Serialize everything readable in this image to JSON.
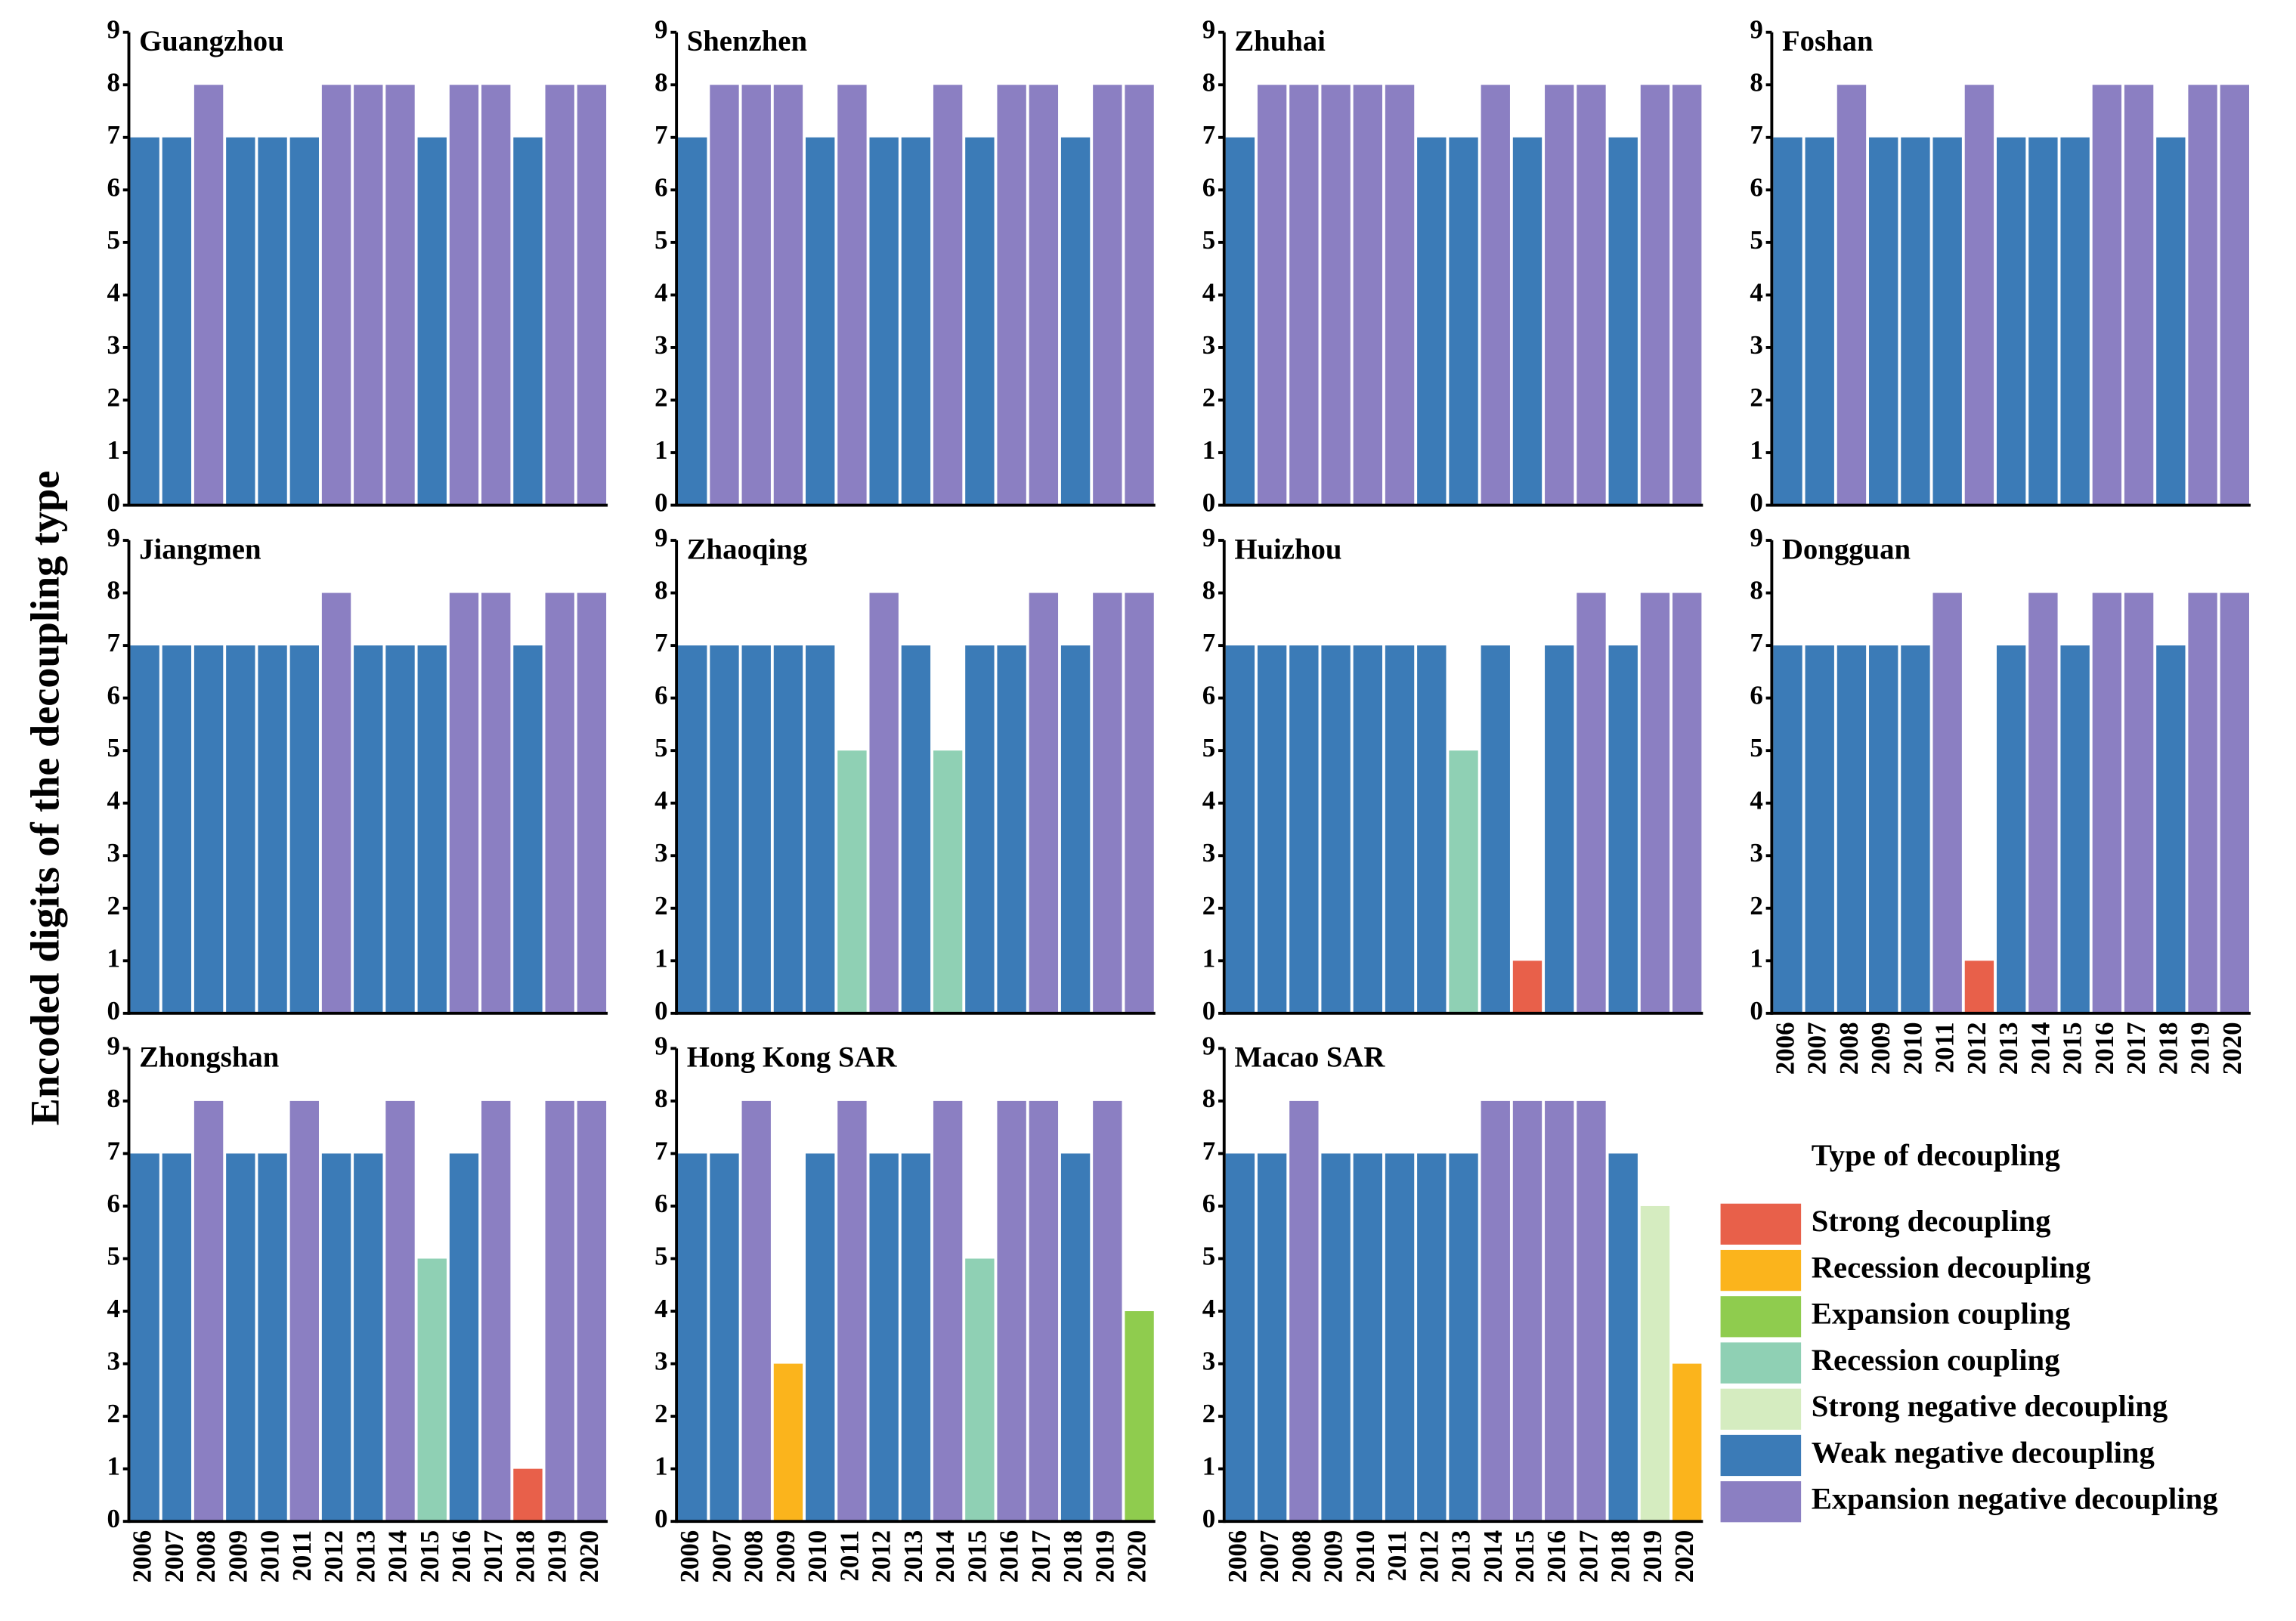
{
  "ylabel": "Encoded digits of the decoupling type",
  "legend": {
    "title": "Type of decoupling",
    "items": [
      {
        "name": "Strong decoupling",
        "color": "#e8604a"
      },
      {
        "name": "Recession decoupling",
        "color": "#fbb41c"
      },
      {
        "name": "Expansion coupling",
        "color": "#8fcc4e"
      },
      {
        "name": "Recession coupling",
        "color": "#8fd0b4"
      },
      {
        "name": "Strong negative decoupling",
        "color": "#d5ecc0"
      },
      {
        "name": "Weak negative decoupling",
        "color": "#3b7bb7"
      },
      {
        "name": "Expansion negative decoupling",
        "color": "#8b7fc2"
      }
    ]
  },
  "chart_data": [
    {
      "type": "bar",
      "title": "Guangzhou",
      "ylim": [
        0,
        9
      ],
      "yticks": [
        0,
        1,
        2,
        3,
        4,
        5,
        6,
        7,
        8,
        9
      ],
      "values": [
        7,
        7,
        8,
        7,
        7,
        7,
        8,
        8,
        8,
        7,
        8,
        8,
        7,
        8,
        8
      ],
      "colors": [
        "#3b7bb7",
        "#3b7bb7",
        "#8b7fc2",
        "#3b7bb7",
        "#3b7bb7",
        "#3b7bb7",
        "#8b7fc2",
        "#8b7fc2",
        "#8b7fc2",
        "#3b7bb7",
        "#8b7fc2",
        "#8b7fc2",
        "#3b7bb7",
        "#8b7fc2",
        "#8b7fc2"
      ]
    },
    {
      "type": "bar",
      "title": "Shenzhen",
      "ylim": [
        0,
        9
      ],
      "yticks": [
        0,
        1,
        2,
        3,
        4,
        5,
        6,
        7,
        8,
        9
      ],
      "values": [
        7,
        8,
        8,
        8,
        7,
        8,
        7,
        7,
        8,
        7,
        8,
        8,
        7,
        8,
        8
      ],
      "colors": [
        "#3b7bb7",
        "#8b7fc2",
        "#8b7fc2",
        "#8b7fc2",
        "#3b7bb7",
        "#8b7fc2",
        "#3b7bb7",
        "#3b7bb7",
        "#8b7fc2",
        "#3b7bb7",
        "#8b7fc2",
        "#8b7fc2",
        "#3b7bb7",
        "#8b7fc2",
        "#8b7fc2"
      ]
    },
    {
      "type": "bar",
      "title": "Zhuhai",
      "ylim": [
        0,
        9
      ],
      "yticks": [
        0,
        1,
        2,
        3,
        4,
        5,
        6,
        7,
        8,
        9
      ],
      "values": [
        7,
        8,
        8,
        8,
        8,
        8,
        7,
        7,
        8,
        7,
        8,
        8,
        7,
        8,
        8
      ],
      "colors": [
        "#3b7bb7",
        "#8b7fc2",
        "#8b7fc2",
        "#8b7fc2",
        "#8b7fc2",
        "#8b7fc2",
        "#3b7bb7",
        "#3b7bb7",
        "#8b7fc2",
        "#3b7bb7",
        "#8b7fc2",
        "#8b7fc2",
        "#3b7bb7",
        "#8b7fc2",
        "#8b7fc2"
      ]
    },
    {
      "type": "bar",
      "title": "Foshan",
      "ylim": [
        0,
        9
      ],
      "yticks": [
        0,
        1,
        2,
        3,
        4,
        5,
        6,
        7,
        8,
        9
      ],
      "values": [
        7,
        7,
        8,
        7,
        7,
        7,
        8,
        7,
        7,
        7,
        8,
        8,
        7,
        8,
        8
      ],
      "colors": [
        "#3b7bb7",
        "#3b7bb7",
        "#8b7fc2",
        "#3b7bb7",
        "#3b7bb7",
        "#3b7bb7",
        "#8b7fc2",
        "#3b7bb7",
        "#3b7bb7",
        "#3b7bb7",
        "#8b7fc2",
        "#8b7fc2",
        "#3b7bb7",
        "#8b7fc2",
        "#8b7fc2"
      ]
    },
    {
      "type": "bar",
      "title": "Jiangmen",
      "ylim": [
        0,
        9
      ],
      "yticks": [
        0,
        1,
        2,
        3,
        4,
        5,
        6,
        7,
        8,
        9
      ],
      "values": [
        7,
        7,
        7,
        7,
        7,
        7,
        8,
        7,
        7,
        7,
        8,
        8,
        7,
        8,
        8
      ],
      "colors": [
        "#3b7bb7",
        "#3b7bb7",
        "#3b7bb7",
        "#3b7bb7",
        "#3b7bb7",
        "#3b7bb7",
        "#8b7fc2",
        "#3b7bb7",
        "#3b7bb7",
        "#3b7bb7",
        "#8b7fc2",
        "#8b7fc2",
        "#3b7bb7",
        "#8b7fc2",
        "#8b7fc2"
      ]
    },
    {
      "type": "bar",
      "title": "Zhaoqing",
      "ylim": [
        0,
        9
      ],
      "yticks": [
        0,
        1,
        2,
        3,
        4,
        5,
        6,
        7,
        8,
        9
      ],
      "values": [
        7,
        7,
        7,
        7,
        7,
        5,
        8,
        7,
        5,
        7,
        7,
        8,
        7,
        8,
        8
      ],
      "colors": [
        "#3b7bb7",
        "#3b7bb7",
        "#3b7bb7",
        "#3b7bb7",
        "#3b7bb7",
        "#8fd0b4",
        "#8b7fc2",
        "#3b7bb7",
        "#8fd0b4",
        "#3b7bb7",
        "#3b7bb7",
        "#8b7fc2",
        "#3b7bb7",
        "#8b7fc2",
        "#8b7fc2"
      ]
    },
    {
      "type": "bar",
      "title": "Huizhou",
      "ylim": [
        0,
        9
      ],
      "yticks": [
        0,
        1,
        2,
        3,
        4,
        5,
        6,
        7,
        8,
        9
      ],
      "values": [
        7,
        7,
        7,
        7,
        7,
        7,
        7,
        5,
        7,
        1,
        7,
        8,
        7,
        8,
        8
      ],
      "colors": [
        "#3b7bb7",
        "#3b7bb7",
        "#3b7bb7",
        "#3b7bb7",
        "#3b7bb7",
        "#3b7bb7",
        "#3b7bb7",
        "#8fd0b4",
        "#3b7bb7",
        "#e8604a",
        "#3b7bb7",
        "#8b7fc2",
        "#3b7bb7",
        "#8b7fc2",
        "#8b7fc2"
      ]
    },
    {
      "type": "bar",
      "title": "Dongguan",
      "ylim": [
        0,
        9
      ],
      "yticks": [
        0,
        1,
        2,
        3,
        4,
        5,
        6,
        7,
        8,
        9
      ],
      "categories": [
        "2006",
        "2007",
        "2008",
        "2009",
        "2010",
        "2011",
        "2012",
        "2013",
        "2014",
        "2015",
        "2016",
        "2017",
        "2018",
        "2019",
        "2020"
      ],
      "values": [
        7,
        7,
        7,
        7,
        7,
        8,
        1,
        7,
        8,
        7,
        8,
        8,
        7,
        8,
        8
      ],
      "colors": [
        "#3b7bb7",
        "#3b7bb7",
        "#3b7bb7",
        "#3b7bb7",
        "#3b7bb7",
        "#8b7fc2",
        "#e8604a",
        "#3b7bb7",
        "#8b7fc2",
        "#3b7bb7",
        "#8b7fc2",
        "#8b7fc2",
        "#3b7bb7",
        "#8b7fc2",
        "#8b7fc2"
      ]
    },
    {
      "type": "bar",
      "title": "Zhongshan",
      "ylim": [
        0,
        9
      ],
      "yticks": [
        0,
        1,
        2,
        3,
        4,
        5,
        6,
        7,
        8,
        9
      ],
      "categories": [
        "2006",
        "2007",
        "2008",
        "2009",
        "2010",
        "2011",
        "2012",
        "2013",
        "2014",
        "2015",
        "2016",
        "2017",
        "2018",
        "2019",
        "2020"
      ],
      "values": [
        7,
        7,
        8,
        7,
        7,
        8,
        7,
        7,
        8,
        5,
        7,
        8,
        1,
        8,
        8
      ],
      "colors": [
        "#3b7bb7",
        "#3b7bb7",
        "#8b7fc2",
        "#3b7bb7",
        "#3b7bb7",
        "#8b7fc2",
        "#3b7bb7",
        "#3b7bb7",
        "#8b7fc2",
        "#8fd0b4",
        "#3b7bb7",
        "#8b7fc2",
        "#e8604a",
        "#8b7fc2",
        "#8b7fc2"
      ]
    },
    {
      "type": "bar",
      "title": "Hong Kong SAR",
      "ylim": [
        0,
        9
      ],
      "yticks": [
        0,
        1,
        2,
        3,
        4,
        5,
        6,
        7,
        8,
        9
      ],
      "categories": [
        "2006",
        "2007",
        "2008",
        "2009",
        "2010",
        "2011",
        "2012",
        "2013",
        "2014",
        "2015",
        "2016",
        "2017",
        "2018",
        "2019",
        "2020"
      ],
      "values": [
        7,
        7,
        8,
        3,
        7,
        8,
        7,
        7,
        8,
        5,
        8,
        8,
        7,
        8,
        4
      ],
      "colors": [
        "#3b7bb7",
        "#3b7bb7",
        "#8b7fc2",
        "#fbb41c",
        "#3b7bb7",
        "#8b7fc2",
        "#3b7bb7",
        "#3b7bb7",
        "#8b7fc2",
        "#8fd0b4",
        "#8b7fc2",
        "#8b7fc2",
        "#3b7bb7",
        "#8b7fc2",
        "#8fcc4e"
      ]
    },
    {
      "type": "bar",
      "title": "Macao SAR",
      "ylim": [
        0,
        9
      ],
      "yticks": [
        0,
        1,
        2,
        3,
        4,
        5,
        6,
        7,
        8,
        9
      ],
      "categories": [
        "2006",
        "2007",
        "2008",
        "2009",
        "2010",
        "2011",
        "2012",
        "2013",
        "2014",
        "2015",
        "2016",
        "2017",
        "2018",
        "2019",
        "2020"
      ],
      "values": [
        7,
        7,
        8,
        7,
        7,
        7,
        7,
        7,
        8,
        8,
        8,
        8,
        7,
        6,
        3
      ],
      "colors": [
        "#3b7bb7",
        "#3b7bb7",
        "#8b7fc2",
        "#3b7bb7",
        "#3b7bb7",
        "#3b7bb7",
        "#3b7bb7",
        "#3b7bb7",
        "#8b7fc2",
        "#8b7fc2",
        "#8b7fc2",
        "#8b7fc2",
        "#3b7bb7",
        "#d5ecc0",
        "#fbb41c"
      ]
    }
  ]
}
